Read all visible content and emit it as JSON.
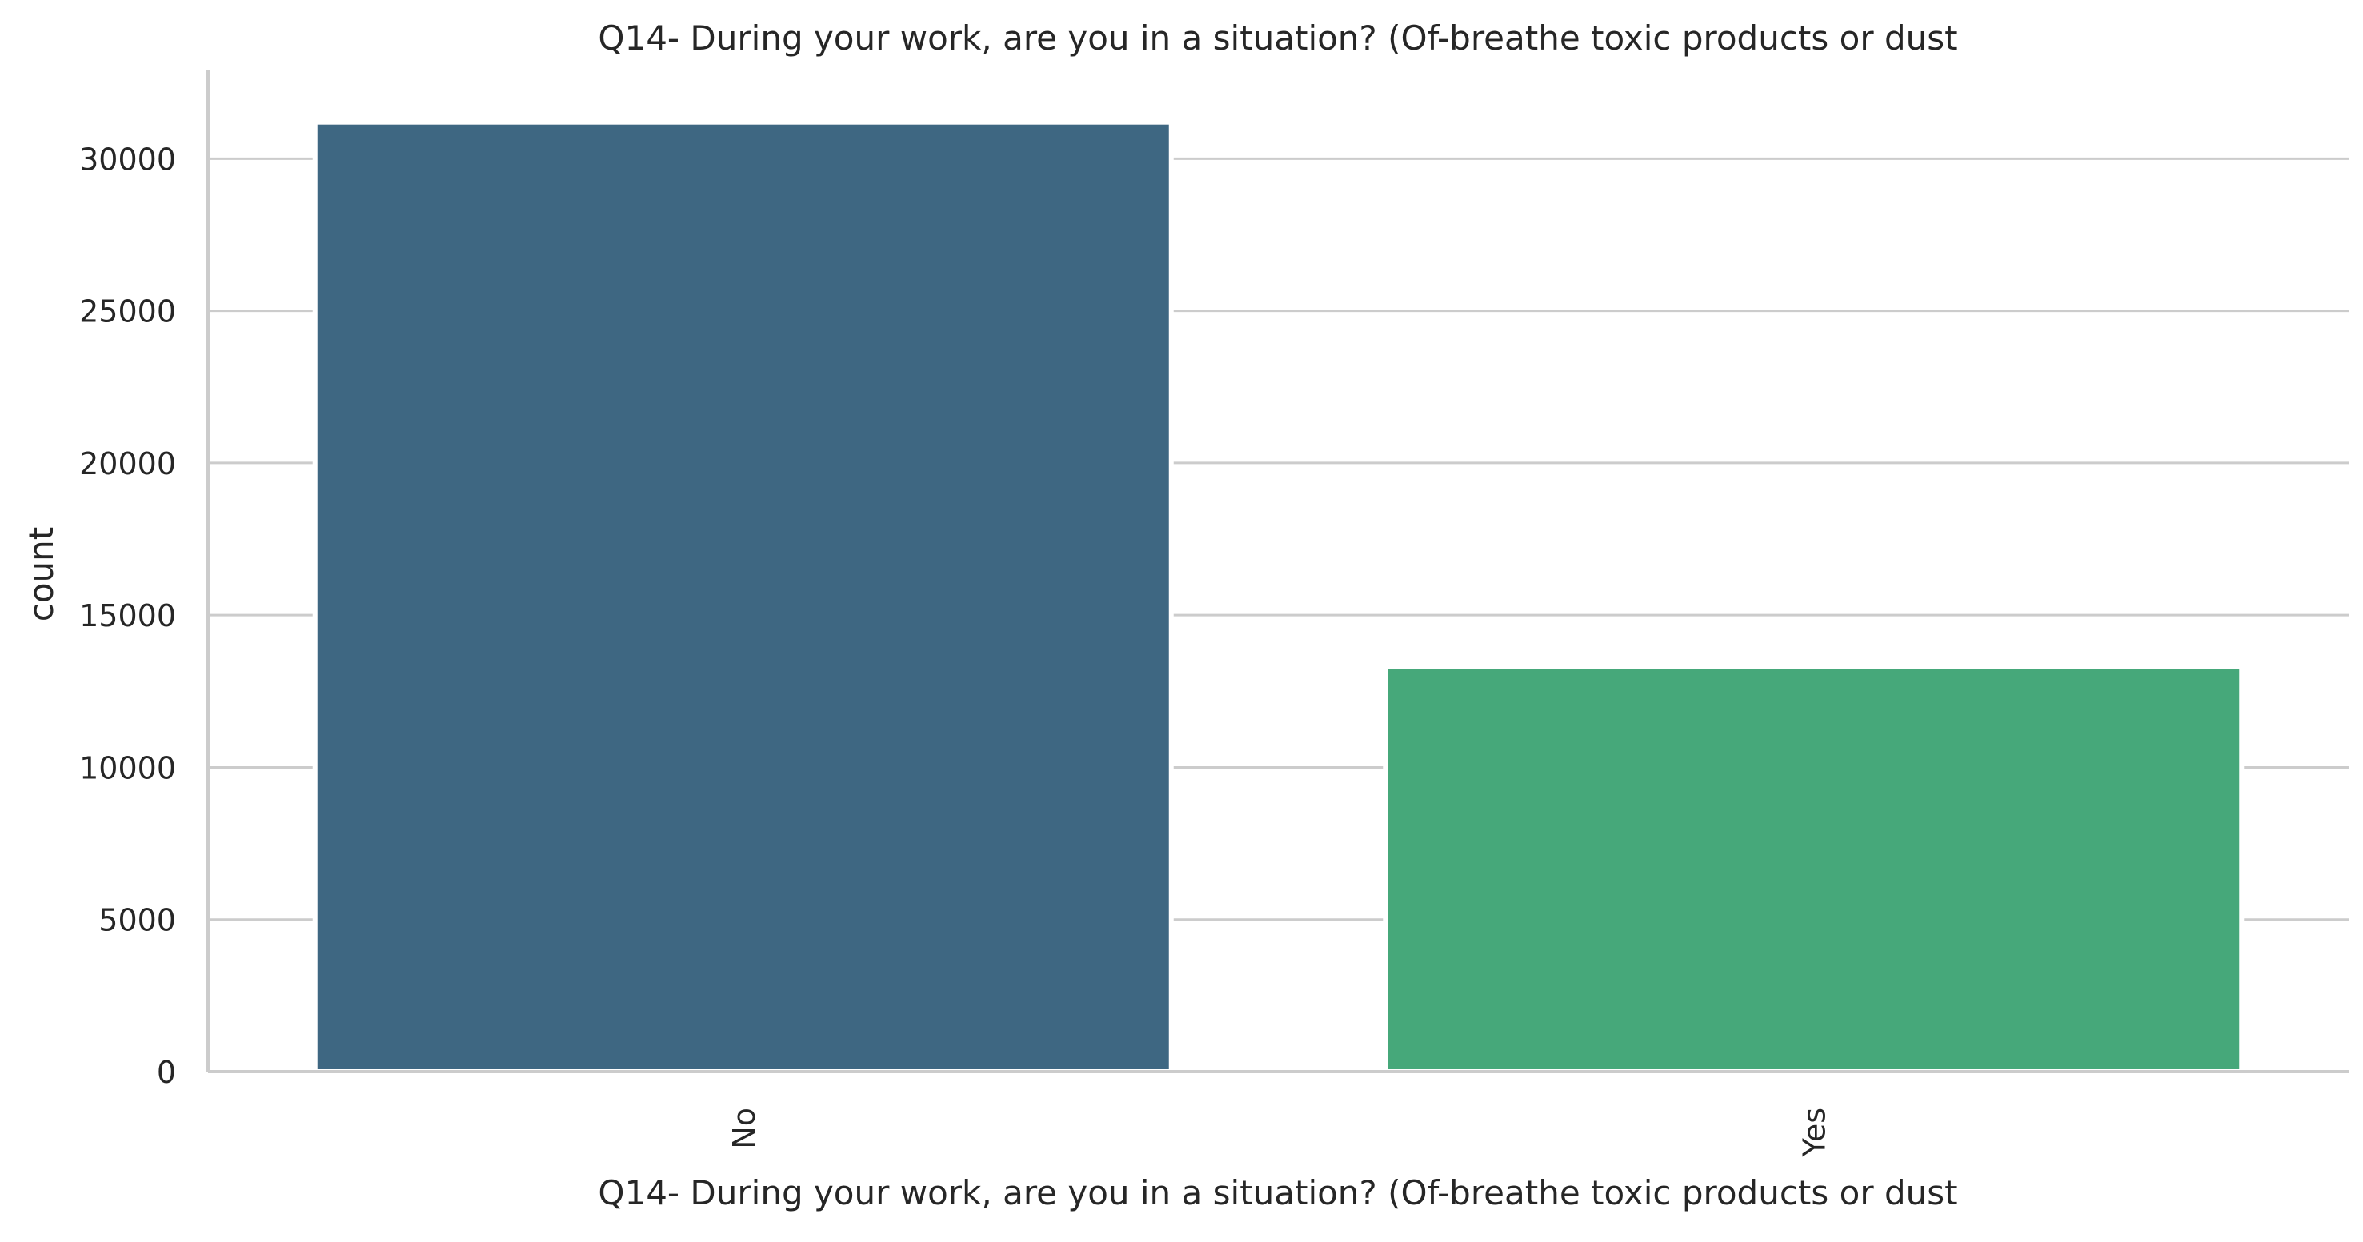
{
  "chart_data": {
    "type": "bar",
    "title": "Q14- During your work, are you in a situation? (Of-breathe toxic products or dust",
    "xlabel": "Q14- During your work, are you in a situation? (Of-breathe toxic products or dust",
    "ylabel": "count",
    "categories": [
      "No",
      "Yes"
    ],
    "values": [
      31200,
      13300
    ],
    "colors": [
      "#3e6782",
      "#46a87a"
    ],
    "ylim": [
      0,
      32900
    ],
    "yticks": [
      0,
      5000,
      10000,
      15000,
      20000,
      25000,
      30000
    ],
    "grid": true,
    "x_tick_rotation": "vertical"
  }
}
